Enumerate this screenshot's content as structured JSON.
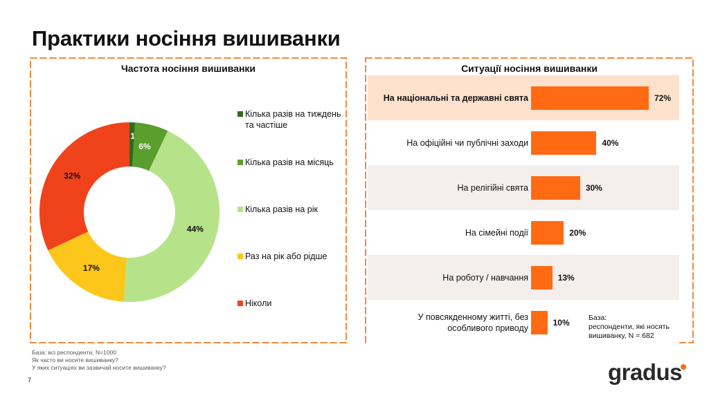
{
  "title": "Практики носіння вишиванки",
  "accent_color": "#ff6a13",
  "chart_data": [
    {
      "type": "pie",
      "variant": "donut",
      "title": "Частота носіння вишиванки",
      "categories": [
        "Кілька разів на тиждень та частіше",
        "Кілька разів на місяць",
        "Кілька разів на рік",
        "Раз на рік або рідше",
        "Ніколи"
      ],
      "values": [
        1,
        6,
        44,
        17,
        32
      ],
      "value_labels": [
        "1%",
        "6%",
        "44%",
        "17%",
        "32%"
      ],
      "colors": [
        "#2e6b1c",
        "#5a9e2e",
        "#b6e38a",
        "#fcc71a",
        "#f0431c"
      ],
      "legend": "right"
    },
    {
      "type": "bar",
      "orientation": "horizontal",
      "title": "Ситуації носіння вишиванки",
      "categories": [
        "На національні та державні свята",
        "На офіційні чи публічні заходи",
        "На релігійні свята",
        "На сімейні події",
        "На роботу / навчання",
        "У повсякденному житті, без особливого приводу"
      ],
      "values": [
        72,
        40,
        30,
        20,
        13,
        10
      ],
      "value_labels": [
        "72%",
        "40%",
        "30%",
        "20%",
        "13%",
        "10%"
      ],
      "bar_color": "#ff6a13",
      "highlight_row": 0,
      "xlim": [
        0,
        75
      ],
      "row_backgrounds": [
        "#fde1cc",
        "#ffffff",
        "#f4efec",
        "#ffffff",
        "#f4efec",
        "#ffffff"
      ]
    }
  ],
  "right_base_note": "База:\nреспонденти, які носять вишиванку, N = 682",
  "footnotes": [
    "База: всі респонденти, N=1000",
    "Як часто ви носите вишиванку?",
    "У яких ситуаціях ви зазвичай носите вишиванку?"
  ],
  "page_number": "7",
  "logo_text": "gradus"
}
